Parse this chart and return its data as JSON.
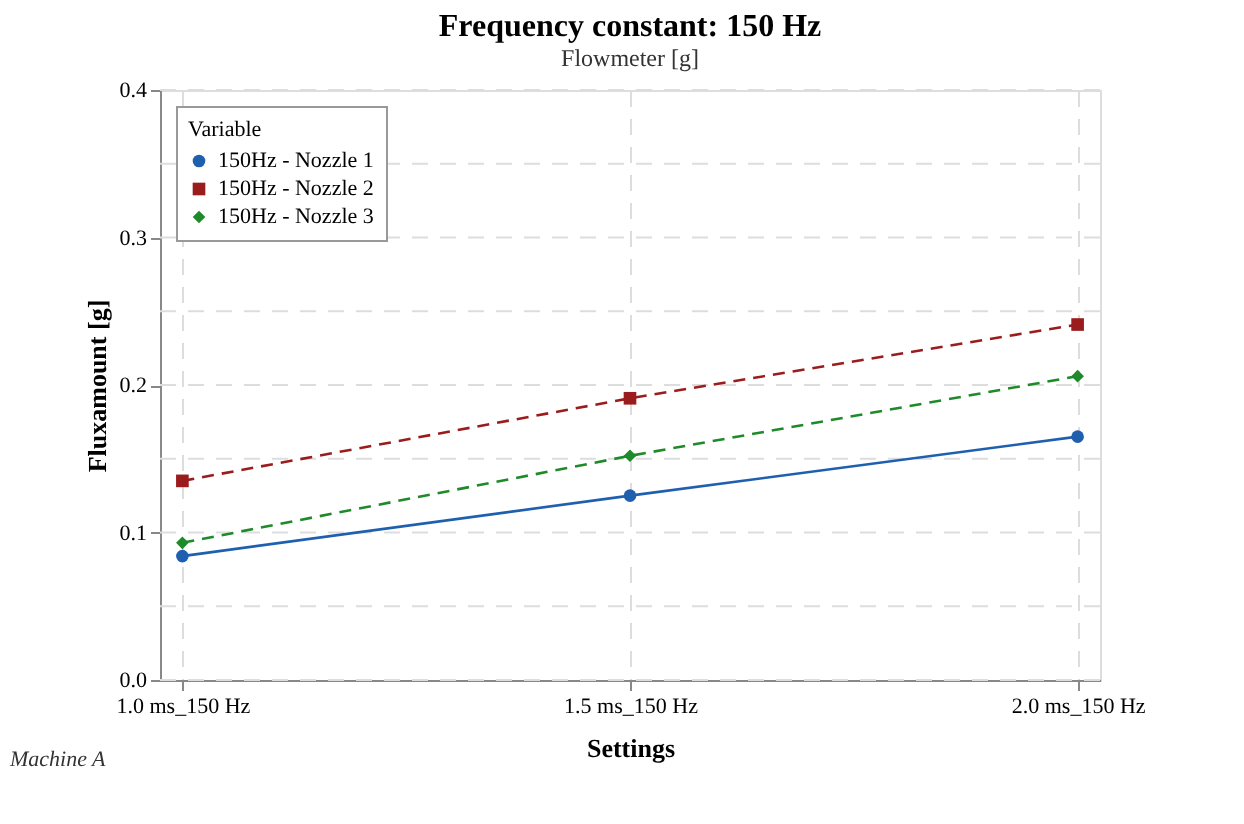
{
  "chart_data": {
    "type": "line",
    "title": "Frequency constant: 150 Hz",
    "subtitle": "Flowmeter [g]",
    "xlabel": "Settings",
    "ylabel": "Fluxamount [g]",
    "legend_title": "Variable",
    "categories": [
      "1.0 ms_150 Hz",
      "1.5 ms_150 Hz",
      "2.0 ms_150 Hz"
    ],
    "series": [
      {
        "name": "150Hz - Nozzle 1",
        "color": "#1f5fb0",
        "values": [
          0.084,
          0.125,
          0.165
        ],
        "marker": "circle",
        "line_style": "solid"
      },
      {
        "name": "150Hz - Nozzle 2",
        "color": "#9b1c1c",
        "values": [
          0.135,
          0.191,
          0.241
        ],
        "marker": "square",
        "line_style": "dashed"
      },
      {
        "name": "150Hz - Nozzle 3",
        "color": "#1f8a2a",
        "values": [
          0.093,
          0.152,
          0.206
        ],
        "marker": "diamond",
        "line_style": "dashed"
      }
    ],
    "ylim": [
      0,
      0.4
    ],
    "yticks": [
      {
        "value": 0,
        "label": "0.0"
      },
      {
        "value": 0.05,
        "label": null
      },
      0.1,
      {
        "value": 0.15,
        "label": null
      },
      0.2,
      {
        "value": 0.25,
        "label": null
      },
      0.3,
      {
        "value": 0.35,
        "label": null
      },
      0.4
    ],
    "grid": true,
    "legend": "top left",
    "annotations": [
      "Machine A"
    ]
  }
}
